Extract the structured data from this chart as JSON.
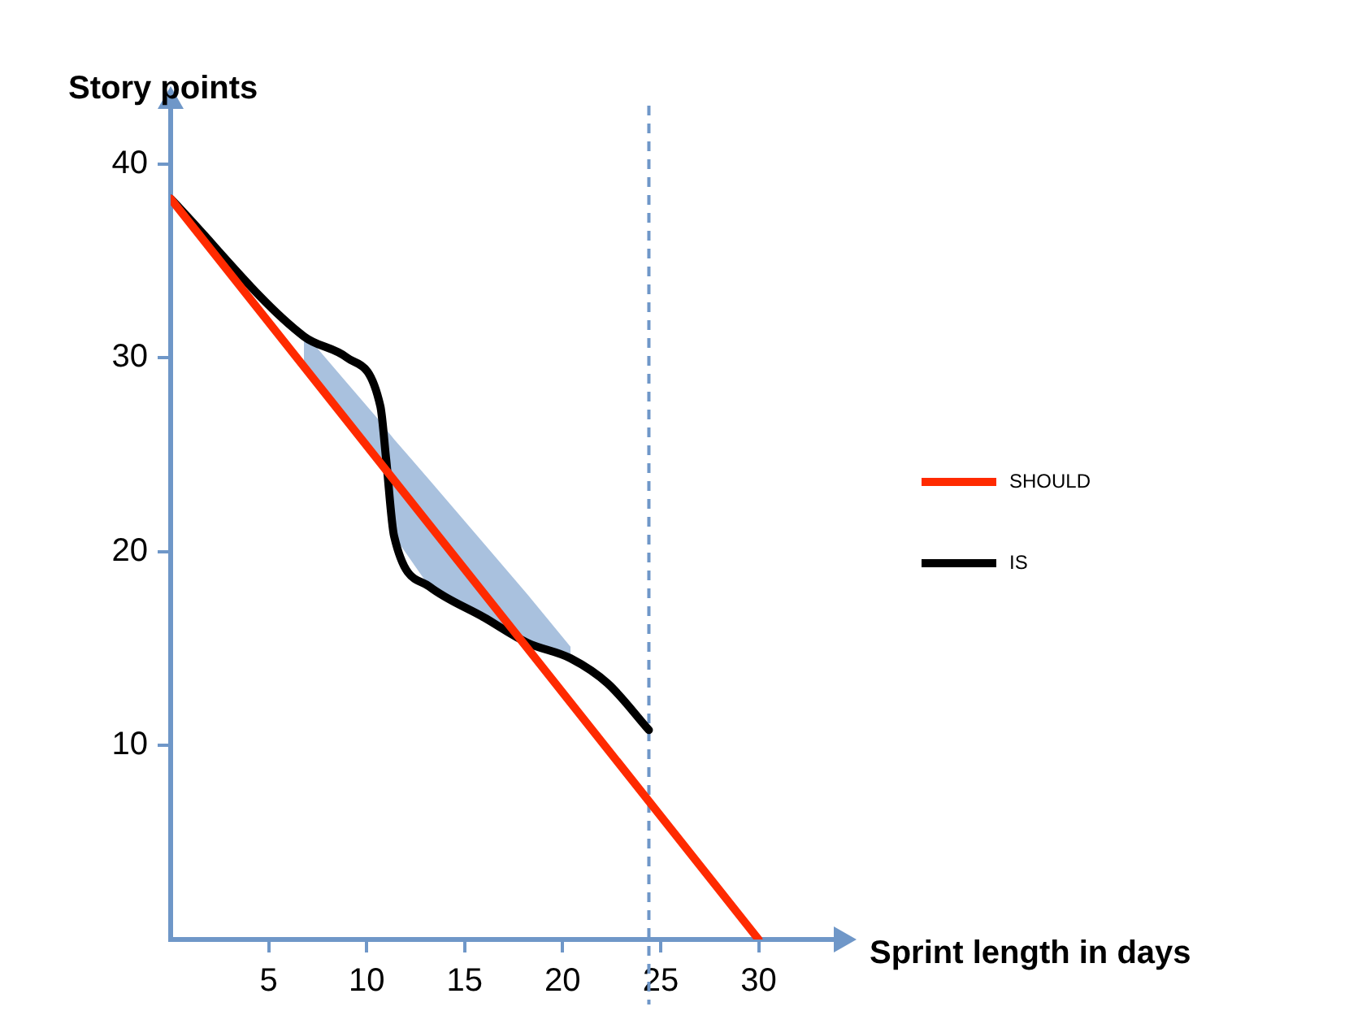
{
  "chart_data": {
    "type": "line",
    "xlabel": "Sprint length in days",
    "ylabel": "Story points",
    "xlim": [
      0,
      34
    ],
    "xticks": [
      5,
      10,
      15,
      20,
      25,
      30
    ],
    "ylim": [
      0,
      43
    ],
    "yticks": [
      10,
      20,
      30,
      40
    ],
    "grid": false,
    "legend": "right",
    "marker": "none",
    "line_style": "solid",
    "series": [
      {
        "name": "SHOULD",
        "color": "#ff2a00",
        "x": [
          0,
          30
        ],
        "values": [
          38.2,
          0
        ]
      },
      {
        "name": "IS",
        "color": "#000000",
        "x": [
          0,
          6.8,
          9,
          10.7,
          11,
          11.4,
          13.2,
          16,
          18.2,
          20.4,
          22.3,
          24.4
        ],
        "values": [
          38.2,
          31.1,
          30,
          27.5,
          24.7,
          20.8,
          18.2,
          16.6,
          15.3,
          14.5,
          13.2,
          10.8
        ],
        "lower": [
          null,
          29.5,
          26.7,
          24.6,
          24.2,
          20.8,
          18.2,
          16.6,
          15.3,
          14.5,
          null,
          null
        ],
        "upper": [
          null,
          31.3,
          28.7,
          26.7,
          26.3,
          25.8,
          23.7,
          20.4,
          17.8,
          15.1,
          null,
          null
        ]
      }
    ],
    "ref_lines": [
      {
        "axis": "x",
        "value": 24.4,
        "color": "#6f97c8",
        "line_style": "dashed"
      }
    ]
  }
}
